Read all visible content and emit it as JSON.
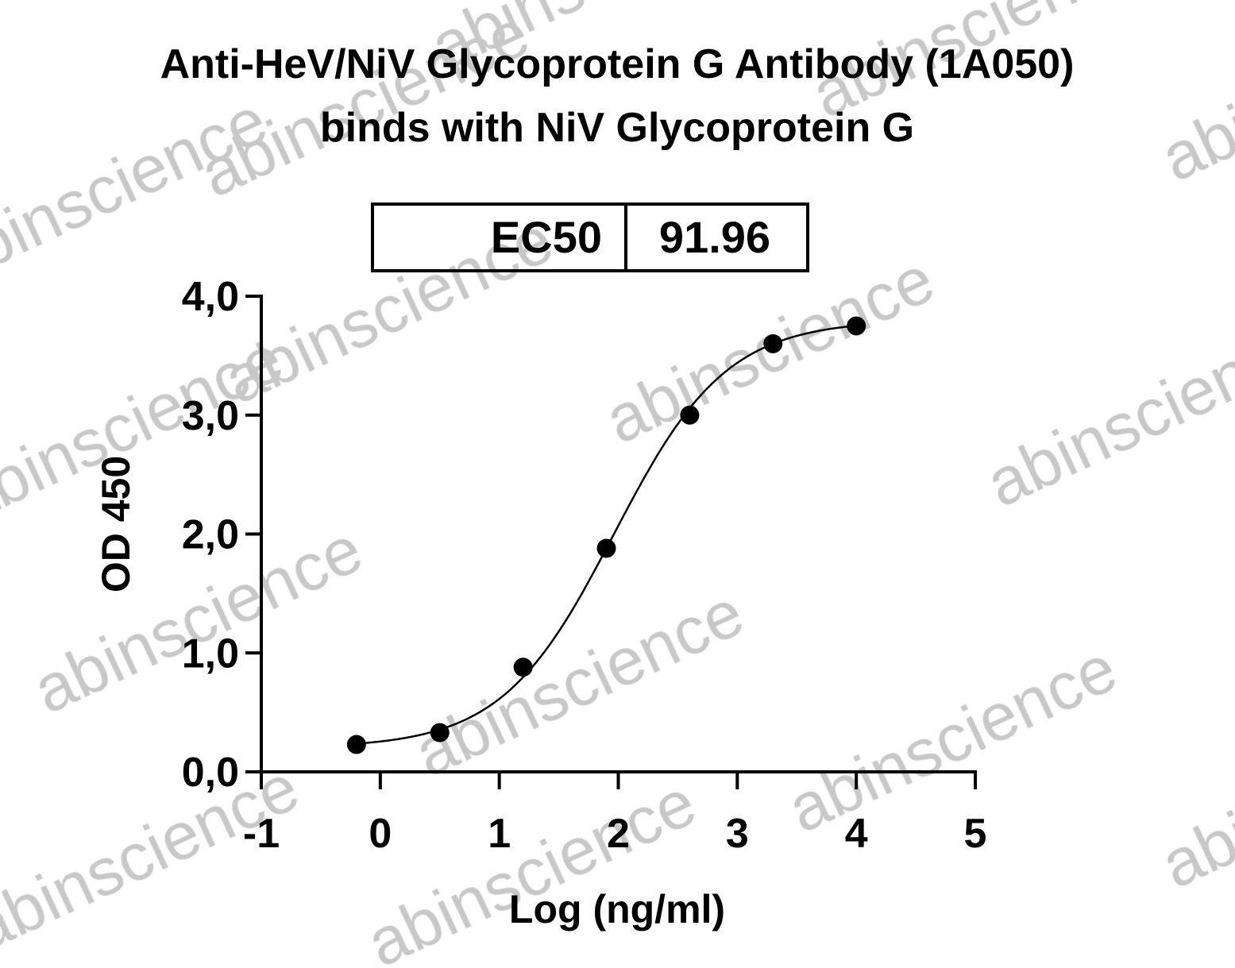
{
  "chart_data": {
    "type": "scatter",
    "title": "Anti-HeV/NiV Glycoprotein G Antibody (1A050) binds with NiV Glycoprotein G",
    "title_lines": [
      "Anti-HeV/NiV Glycoprotein G Antibody (1A050)",
      "binds with NiV Glycoprotein G"
    ],
    "xlabel": "Log (ng/ml)",
    "ylabel": "OD 450",
    "xlim": [
      -1,
      5
    ],
    "ylim": [
      0,
      4
    ],
    "x_ticks": [
      "-1",
      "0",
      "1",
      "2",
      "3",
      "4",
      "5"
    ],
    "y_ticks": [
      "0,0",
      "1,0",
      "2,0",
      "3,0",
      "4,0"
    ],
    "grid": false,
    "fit_curve": "four-parameter logistic",
    "points": [
      {
        "x": -0.2,
        "y": 0.23
      },
      {
        "x": 0.5,
        "y": 0.33
      },
      {
        "x": 1.2,
        "y": 0.88
      },
      {
        "x": 1.9,
        "y": 1.88
      },
      {
        "x": 2.6,
        "y": 3.0
      },
      {
        "x": 3.3,
        "y": 3.6
      },
      {
        "x": 4.0,
        "y": 3.75
      }
    ],
    "table": {
      "label": "EC50",
      "value": "91.96"
    }
  },
  "watermark": "abinscience",
  "colors": {
    "marks": "#000000",
    "watermark": "#c8c8c8"
  }
}
